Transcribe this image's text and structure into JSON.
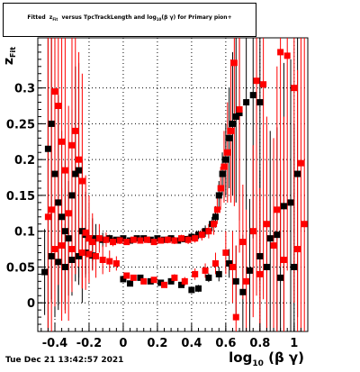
{
  "chart_data": {
    "type": "scatter",
    "title": "Fitted z_Fit versus TpcTrackLength and log_10(βγ) for Primary pion+",
    "xlabel": "log10(βγ)",
    "ylabel": "z_Fit",
    "xlim": [
      -0.5,
      1.08
    ],
    "ylim": [
      -0.04,
      0.37
    ],
    "xticks": [
      "-0.4",
      "-0.2",
      "0",
      "0.2",
      "0.4",
      "0.6",
      "0.8",
      "1"
    ],
    "yticks": [
      "0",
      "0.05",
      "0.1",
      "0.15",
      "0.2",
      "0.25",
      "0.3"
    ],
    "grid": true,
    "series": [
      {
        "color": "#000000",
        "marker": "square",
        "points": [
          {
            "x": -0.44,
            "y": 0.215,
            "err": 0.25
          },
          {
            "x": -0.42,
            "y": 0.25,
            "err": 0.25
          },
          {
            "x": -0.4,
            "y": 0.18,
            "err": 0.2
          },
          {
            "x": -0.38,
            "y": 0.14,
            "err": 0.15
          },
          {
            "x": -0.36,
            "y": 0.12,
            "err": 0.12
          },
          {
            "x": -0.34,
            "y": 0.1,
            "err": 0.1
          },
          {
            "x": -0.32,
            "y": 0.09,
            "err": 0.08
          },
          {
            "x": -0.3,
            "y": 0.15,
            "err": 0.12
          },
          {
            "x": -0.28,
            "y": 0.18,
            "err": 0.15
          },
          {
            "x": -0.26,
            "y": 0.185,
            "err": 0.15
          },
          {
            "x": -0.24,
            "y": 0.1,
            "err": 0.1
          },
          {
            "x": -0.22,
            "y": 0.095,
            "err": 0.06
          },
          {
            "x": -0.2,
            "y": 0.09,
            "err": 0.05
          },
          {
            "x": -0.18,
            "y": 0.088,
            "err": 0.03
          },
          {
            "x": -0.16,
            "y": 0.09,
            "err": 0.02
          },
          {
            "x": -0.12,
            "y": 0.088,
            "err": 0.01
          },
          {
            "x": -0.08,
            "y": 0.09,
            "err": 0.005
          },
          {
            "x": -0.04,
            "y": 0.088,
            "err": 0.004
          },
          {
            "x": 0.0,
            "y": 0.09,
            "err": 0.003
          },
          {
            "x": 0.04,
            "y": 0.087,
            "err": 0.003
          },
          {
            "x": 0.08,
            "y": 0.09,
            "err": 0.003
          },
          {
            "x": 0.12,
            "y": 0.09,
            "err": 0.003
          },
          {
            "x": 0.16,
            "y": 0.088,
            "err": 0.003
          },
          {
            "x": 0.2,
            "y": 0.09,
            "err": 0.003
          },
          {
            "x": 0.24,
            "y": 0.088,
            "err": 0.003
          },
          {
            "x": 0.28,
            "y": 0.09,
            "err": 0.004
          },
          {
            "x": 0.32,
            "y": 0.087,
            "err": 0.004
          },
          {
            "x": 0.36,
            "y": 0.089,
            "err": 0.004
          },
          {
            "x": 0.4,
            "y": 0.092,
            "err": 0.005
          },
          {
            "x": 0.44,
            "y": 0.095,
            "err": 0.006
          },
          {
            "x": 0.48,
            "y": 0.1,
            "err": 0.008
          },
          {
            "x": 0.52,
            "y": 0.11,
            "err": 0.01
          },
          {
            "x": 0.54,
            "y": 0.12,
            "err": 0.015
          },
          {
            "x": 0.56,
            "y": 0.15,
            "err": 0.02
          },
          {
            "x": 0.58,
            "y": 0.18,
            "err": 0.03
          },
          {
            "x": 0.6,
            "y": 0.2,
            "err": 0.05
          },
          {
            "x": 0.62,
            "y": 0.23,
            "err": 0.07
          },
          {
            "x": 0.64,
            "y": 0.25,
            "err": 0.1
          },
          {
            "x": 0.66,
            "y": 0.26,
            "err": 0.12
          },
          {
            "x": 0.68,
            "y": 0.265,
            "err": 0.15
          },
          {
            "x": 0.72,
            "y": 0.28,
            "err": 0.15
          },
          {
            "x": 0.76,
            "y": 0.29,
            "err": 0.2
          },
          {
            "x": 0.8,
            "y": 0.28,
            "err": 0.25
          },
          {
            "x": -0.46,
            "y": 0.043,
            "err": 0.06
          },
          {
            "x": -0.42,
            "y": 0.065,
            "err": 0.06
          },
          {
            "x": -0.38,
            "y": 0.057,
            "err": 0.06
          },
          {
            "x": -0.34,
            "y": 0.05,
            "err": 0.06
          },
          {
            "x": -0.3,
            "y": 0.06,
            "err": 0.05
          },
          {
            "x": -0.26,
            "y": 0.065,
            "err": 0.04
          },
          {
            "x": -0.22,
            "y": 0.07,
            "err": 0.03
          },
          {
            "x": -0.18,
            "y": 0.066,
            "err": 0.02
          },
          {
            "x": 0.0,
            "y": 0.033,
            "err": 0.003
          },
          {
            "x": 0.04,
            "y": 0.027,
            "err": 0.003
          },
          {
            "x": 0.1,
            "y": 0.035,
            "err": 0.003
          },
          {
            "x": 0.16,
            "y": 0.03,
            "err": 0.003
          },
          {
            "x": 0.22,
            "y": 0.028,
            "err": 0.003
          },
          {
            "x": 0.28,
            "y": 0.03,
            "err": 0.003
          },
          {
            "x": 0.34,
            "y": 0.025,
            "err": 0.003
          },
          {
            "x": 0.4,
            "y": 0.018,
            "err": 0.004
          },
          {
            "x": 0.44,
            "y": 0.02,
            "err": 0.005
          },
          {
            "x": 0.5,
            "y": 0.035,
            "err": 0.006
          },
          {
            "x": 0.56,
            "y": 0.04,
            "err": 0.01
          },
          {
            "x": 0.62,
            "y": 0.055,
            "err": 0.02
          },
          {
            "x": 0.66,
            "y": 0.03,
            "err": 0.05
          },
          {
            "x": 0.7,
            "y": 0.015,
            "err": 0.08
          },
          {
            "x": 0.74,
            "y": 0.045,
            "err": 0.1
          },
          {
            "x": 0.8,
            "y": 0.065,
            "err": 0.12
          },
          {
            "x": 0.86,
            "y": 0.09,
            "err": 0.15
          },
          {
            "x": 0.9,
            "y": 0.095,
            "err": 0.15
          },
          {
            "x": 0.94,
            "y": 0.135,
            "err": 0.2
          },
          {
            "x": 0.98,
            "y": 0.14,
            "err": 0.2
          },
          {
            "x": 1.02,
            "y": 0.18,
            "err": 0.2
          },
          {
            "x": 0.84,
            "y": 0.05,
            "err": 0.15
          },
          {
            "x": 0.92,
            "y": 0.035,
            "err": 0.15
          },
          {
            "x": 1.0,
            "y": 0.05,
            "err": 0.2
          }
        ]
      },
      {
        "color": "#ff0000",
        "marker": "square",
        "points": [
          {
            "x": -0.44,
            "y": 0.12,
            "err": 0.25
          },
          {
            "x": -0.42,
            "y": 0.13,
            "err": 0.25
          },
          {
            "x": -0.4,
            "y": 0.295,
            "err": 0.3
          },
          {
            "x": -0.38,
            "y": 0.275,
            "err": 0.25
          },
          {
            "x": -0.36,
            "y": 0.225,
            "err": 0.25
          },
          {
            "x": -0.34,
            "y": 0.185,
            "err": 0.2
          },
          {
            "x": -0.32,
            "y": 0.125,
            "err": 0.15
          },
          {
            "x": -0.3,
            "y": 0.22,
            "err": 0.2
          },
          {
            "x": -0.28,
            "y": 0.24,
            "err": 0.2
          },
          {
            "x": -0.26,
            "y": 0.2,
            "err": 0.15
          },
          {
            "x": -0.24,
            "y": 0.17,
            "err": 0.15
          },
          {
            "x": -0.22,
            "y": 0.098,
            "err": 0.08
          },
          {
            "x": -0.2,
            "y": 0.09,
            "err": 0.06
          },
          {
            "x": -0.18,
            "y": 0.085,
            "err": 0.04
          },
          {
            "x": -0.14,
            "y": 0.09,
            "err": 0.02
          },
          {
            "x": -0.1,
            "y": 0.088,
            "err": 0.01
          },
          {
            "x": -0.06,
            "y": 0.085,
            "err": 0.006
          },
          {
            "x": -0.02,
            "y": 0.087,
            "err": 0.005
          },
          {
            "x": 0.02,
            "y": 0.085,
            "err": 0.004
          },
          {
            "x": 0.06,
            "y": 0.088,
            "err": 0.004
          },
          {
            "x": 0.1,
            "y": 0.087,
            "err": 0.004
          },
          {
            "x": 0.14,
            "y": 0.088,
            "err": 0.004
          },
          {
            "x": 0.18,
            "y": 0.085,
            "err": 0.004
          },
          {
            "x": 0.22,
            "y": 0.087,
            "err": 0.004
          },
          {
            "x": 0.26,
            "y": 0.088,
            "err": 0.005
          },
          {
            "x": 0.3,
            "y": 0.087,
            "err": 0.005
          },
          {
            "x": 0.34,
            "y": 0.09,
            "err": 0.005
          },
          {
            "x": 0.38,
            "y": 0.088,
            "err": 0.006
          },
          {
            "x": 0.42,
            "y": 0.09,
            "err": 0.006
          },
          {
            "x": 0.46,
            "y": 0.095,
            "err": 0.008
          },
          {
            "x": 0.5,
            "y": 0.1,
            "err": 0.01
          },
          {
            "x": 0.53,
            "y": 0.11,
            "err": 0.015
          },
          {
            "x": 0.55,
            "y": 0.13,
            "err": 0.02
          },
          {
            "x": 0.57,
            "y": 0.16,
            "err": 0.03
          },
          {
            "x": 0.59,
            "y": 0.19,
            "err": 0.05
          },
          {
            "x": 0.61,
            "y": 0.21,
            "err": 0.07
          },
          {
            "x": 0.63,
            "y": 0.24,
            "err": 0.1
          },
          {
            "x": 0.65,
            "y": 0.335,
            "err": 0.2
          },
          {
            "x": 0.68,
            "y": 0.27,
            "err": 0.2
          },
          {
            "x": 0.78,
            "y": 0.31,
            "err": 0.3
          },
          {
            "x": 0.82,
            "y": 0.305,
            "err": 0.3
          },
          {
            "x": 0.92,
            "y": 0.35,
            "err": 0.3
          },
          {
            "x": 0.96,
            "y": 0.345,
            "err": 0.3
          },
          {
            "x": 1.0,
            "y": 0.3,
            "err": 0.3
          },
          {
            "x": 1.04,
            "y": 0.195,
            "err": 0.3
          },
          {
            "x": -0.4,
            "y": 0.075,
            "err": 0.08
          },
          {
            "x": -0.36,
            "y": 0.08,
            "err": 0.08
          },
          {
            "x": -0.3,
            "y": 0.075,
            "err": 0.06
          },
          {
            "x": -0.24,
            "y": 0.07,
            "err": 0.05
          },
          {
            "x": -0.2,
            "y": 0.068,
            "err": 0.04
          },
          {
            "x": -0.16,
            "y": 0.065,
            "err": 0.03
          },
          {
            "x": -0.12,
            "y": 0.06,
            "err": 0.02
          },
          {
            "x": -0.08,
            "y": 0.058,
            "err": 0.015
          },
          {
            "x": -0.04,
            "y": 0.055,
            "err": 0.01
          },
          {
            "x": 0.02,
            "y": 0.038,
            "err": 0.004
          },
          {
            "x": 0.06,
            "y": 0.035,
            "err": 0.004
          },
          {
            "x": 0.12,
            "y": 0.03,
            "err": 0.004
          },
          {
            "x": 0.18,
            "y": 0.032,
            "err": 0.004
          },
          {
            "x": 0.24,
            "y": 0.025,
            "err": 0.004
          },
          {
            "x": 0.3,
            "y": 0.035,
            "err": 0.005
          },
          {
            "x": 0.36,
            "y": 0.03,
            "err": 0.006
          },
          {
            "x": 0.42,
            "y": 0.04,
            "err": 0.008
          },
          {
            "x": 0.48,
            "y": 0.045,
            "err": 0.01
          },
          {
            "x": 0.54,
            "y": 0.055,
            "err": 0.015
          },
          {
            "x": 0.6,
            "y": 0.07,
            "err": 0.03
          },
          {
            "x": 0.64,
            "y": 0.05,
            "err": 0.05
          },
          {
            "x": 0.7,
            "y": 0.085,
            "err": 0.08
          },
          {
            "x": 0.76,
            "y": 0.1,
            "err": 0.12
          },
          {
            "x": 0.84,
            "y": 0.11,
            "err": 0.15
          },
          {
            "x": 0.88,
            "y": 0.08,
            "err": 0.15
          },
          {
            "x": 0.94,
            "y": 0.06,
            "err": 0.2
          },
          {
            "x": 1.02,
            "y": 0.075,
            "err": 0.25
          },
          {
            "x": 1.06,
            "y": 0.11,
            "err": 0.3
          },
          {
            "x": 0.72,
            "y": 0.03,
            "err": 0.1
          },
          {
            "x": 0.8,
            "y": 0.04,
            "err": 0.12
          },
          {
            "x": 0.9,
            "y": 0.13,
            "err": 0.2
          },
          {
            "x": 0.66,
            "y": -0.02,
            "err": 0.1
          }
        ]
      }
    ]
  },
  "footer": {
    "timestamp": "Tue Dec 21 13:42:57 2021"
  }
}
